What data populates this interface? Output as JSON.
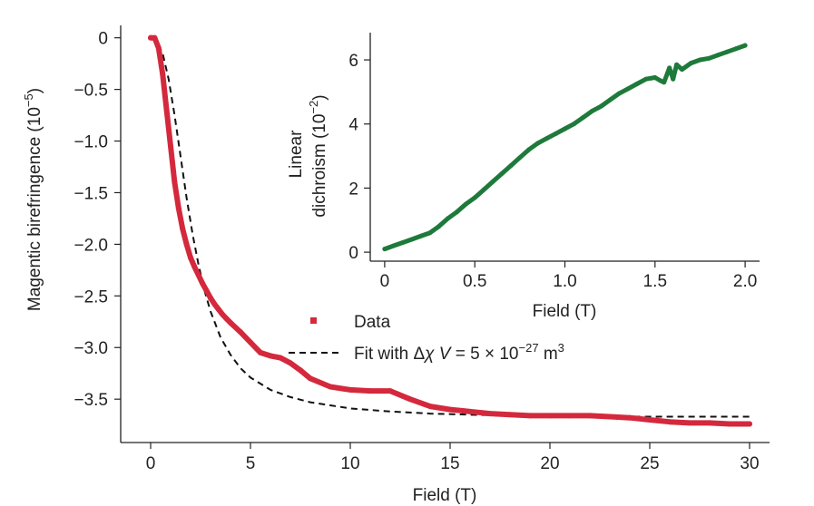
{
  "chart_data": [
    {
      "type": "scatter",
      "title": "",
      "xlabel": "Field (T)",
      "ylabel": "Magentic birefringence (10",
      "ylabel_exp": "−5",
      "ylabel_close": ")",
      "xlim": [
        -1.5,
        31.0
      ],
      "ylim": [
        -3.92,
        0.12
      ],
      "xticks": [
        0,
        5,
        10,
        15,
        20,
        25,
        30
      ],
      "xtick_labels": [
        "0",
        "5",
        "10",
        "15",
        "20",
        "25",
        "30"
      ],
      "yticks": [
        0,
        -0.5,
        -1.0,
        -1.5,
        -2.0,
        -2.5,
        -3.0,
        -3.5
      ],
      "ytick_labels": [
        "0",
        "−0.5",
        "−1.0",
        "−1.5",
        "−2.0",
        "−2.5",
        "−3.0",
        "−3.5"
      ],
      "grid": false,
      "legend_position": "center-right",
      "series": [
        {
          "name": "Data",
          "style": "markers",
          "color": "#d4293d",
          "x": [
            0,
            0.2,
            0.4,
            0.6,
            0.8,
            1.0,
            1.2,
            1.4,
            1.6,
            1.8,
            2.0,
            2.2,
            2.4,
            2.6,
            2.8,
            3.0,
            3.2,
            3.4,
            3.6,
            3.8,
            4.0,
            4.5,
            5.0,
            5.5,
            6.0,
            6.5,
            7.0,
            7.5,
            8.0,
            9.0,
            10.0,
            11.0,
            12.0,
            13.0,
            14.0,
            15.0,
            16.0,
            17.0,
            18.0,
            19.0,
            20.0,
            21.0,
            22.0,
            23.0,
            24.0,
            25.0,
            26.0,
            27.0,
            28.0,
            29.0,
            30.0
          ],
          "y": [
            0,
            0,
            -0.1,
            -0.35,
            -0.7,
            -1.05,
            -1.4,
            -1.65,
            -1.85,
            -2.0,
            -2.13,
            -2.22,
            -2.3,
            -2.38,
            -2.45,
            -2.52,
            -2.58,
            -2.63,
            -2.68,
            -2.72,
            -2.76,
            -2.85,
            -2.95,
            -3.05,
            -3.08,
            -3.1,
            -3.15,
            -3.22,
            -3.3,
            -3.38,
            -3.41,
            -3.42,
            -3.42,
            -3.5,
            -3.57,
            -3.6,
            -3.62,
            -3.64,
            -3.65,
            -3.66,
            -3.66,
            -3.66,
            -3.66,
            -3.67,
            -3.68,
            -3.7,
            -3.72,
            -3.73,
            -3.73,
            -3.74,
            -3.74
          ]
        },
        {
          "name": "Fit with Δχ V = 5 × 10−27 m3",
          "style": "dashed",
          "color": "#111111",
          "x": [
            0,
            0.3,
            0.6,
            0.9,
            1.2,
            1.5,
            1.8,
            2.1,
            2.4,
            2.7,
            3.0,
            3.5,
            4.0,
            4.5,
            5.0,
            6.0,
            7.0,
            8.0,
            9.0,
            10.0,
            12.0,
            14.0,
            16.0,
            18.0,
            20.0,
            25.0,
            30.0
          ],
          "y": [
            0,
            -0.03,
            -0.15,
            -0.4,
            -0.75,
            -1.15,
            -1.55,
            -1.9,
            -2.2,
            -2.45,
            -2.65,
            -2.9,
            -3.07,
            -3.2,
            -3.29,
            -3.41,
            -3.48,
            -3.53,
            -3.56,
            -3.59,
            -3.62,
            -3.64,
            -3.65,
            -3.66,
            -3.665,
            -3.67,
            -3.67
          ]
        }
      ]
    },
    {
      "type": "scatter",
      "title": "",
      "xlabel": "Field (T)",
      "ylabel_line1": "Linear",
      "ylabel_line2": "dichroism (10",
      "ylabel_exp": "−2",
      "ylabel_close": ")",
      "xlim": [
        -0.08,
        2.08
      ],
      "ylim": [
        -0.28,
        6.85
      ],
      "xticks": [
        0,
        0.5,
        1.0,
        1.5,
        2.0
      ],
      "xtick_labels": [
        "0",
        "0.5",
        "1.0",
        "1.5",
        "2.0"
      ],
      "yticks": [
        0,
        2,
        4,
        6
      ],
      "ytick_labels": [
        "0",
        "2",
        "4",
        "6"
      ],
      "grid": false,
      "series": [
        {
          "color": "#1e7a3a",
          "x": [
            0,
            0.05,
            0.1,
            0.15,
            0.2,
            0.25,
            0.3,
            0.35,
            0.4,
            0.45,
            0.5,
            0.55,
            0.6,
            0.65,
            0.7,
            0.75,
            0.8,
            0.85,
            0.9,
            0.95,
            1.0,
            1.05,
            1.1,
            1.15,
            1.2,
            1.25,
            1.3,
            1.35,
            1.4,
            1.45,
            1.5,
            1.53,
            1.55,
            1.57,
            1.58,
            1.6,
            1.62,
            1.65,
            1.7,
            1.75,
            1.8,
            1.85,
            1.9,
            1.95,
            2.0
          ],
          "y": [
            0.1,
            0.2,
            0.3,
            0.4,
            0.5,
            0.6,
            0.8,
            1.05,
            1.25,
            1.5,
            1.7,
            1.95,
            2.2,
            2.45,
            2.7,
            2.95,
            3.2,
            3.4,
            3.55,
            3.7,
            3.85,
            4.0,
            4.2,
            4.4,
            4.55,
            4.75,
            4.95,
            5.1,
            5.25,
            5.4,
            5.45,
            5.35,
            5.3,
            5.6,
            5.75,
            5.4,
            5.85,
            5.7,
            5.9,
            6.0,
            6.05,
            6.15,
            6.25,
            6.35,
            6.45
          ]
        }
      ]
    }
  ]
}
